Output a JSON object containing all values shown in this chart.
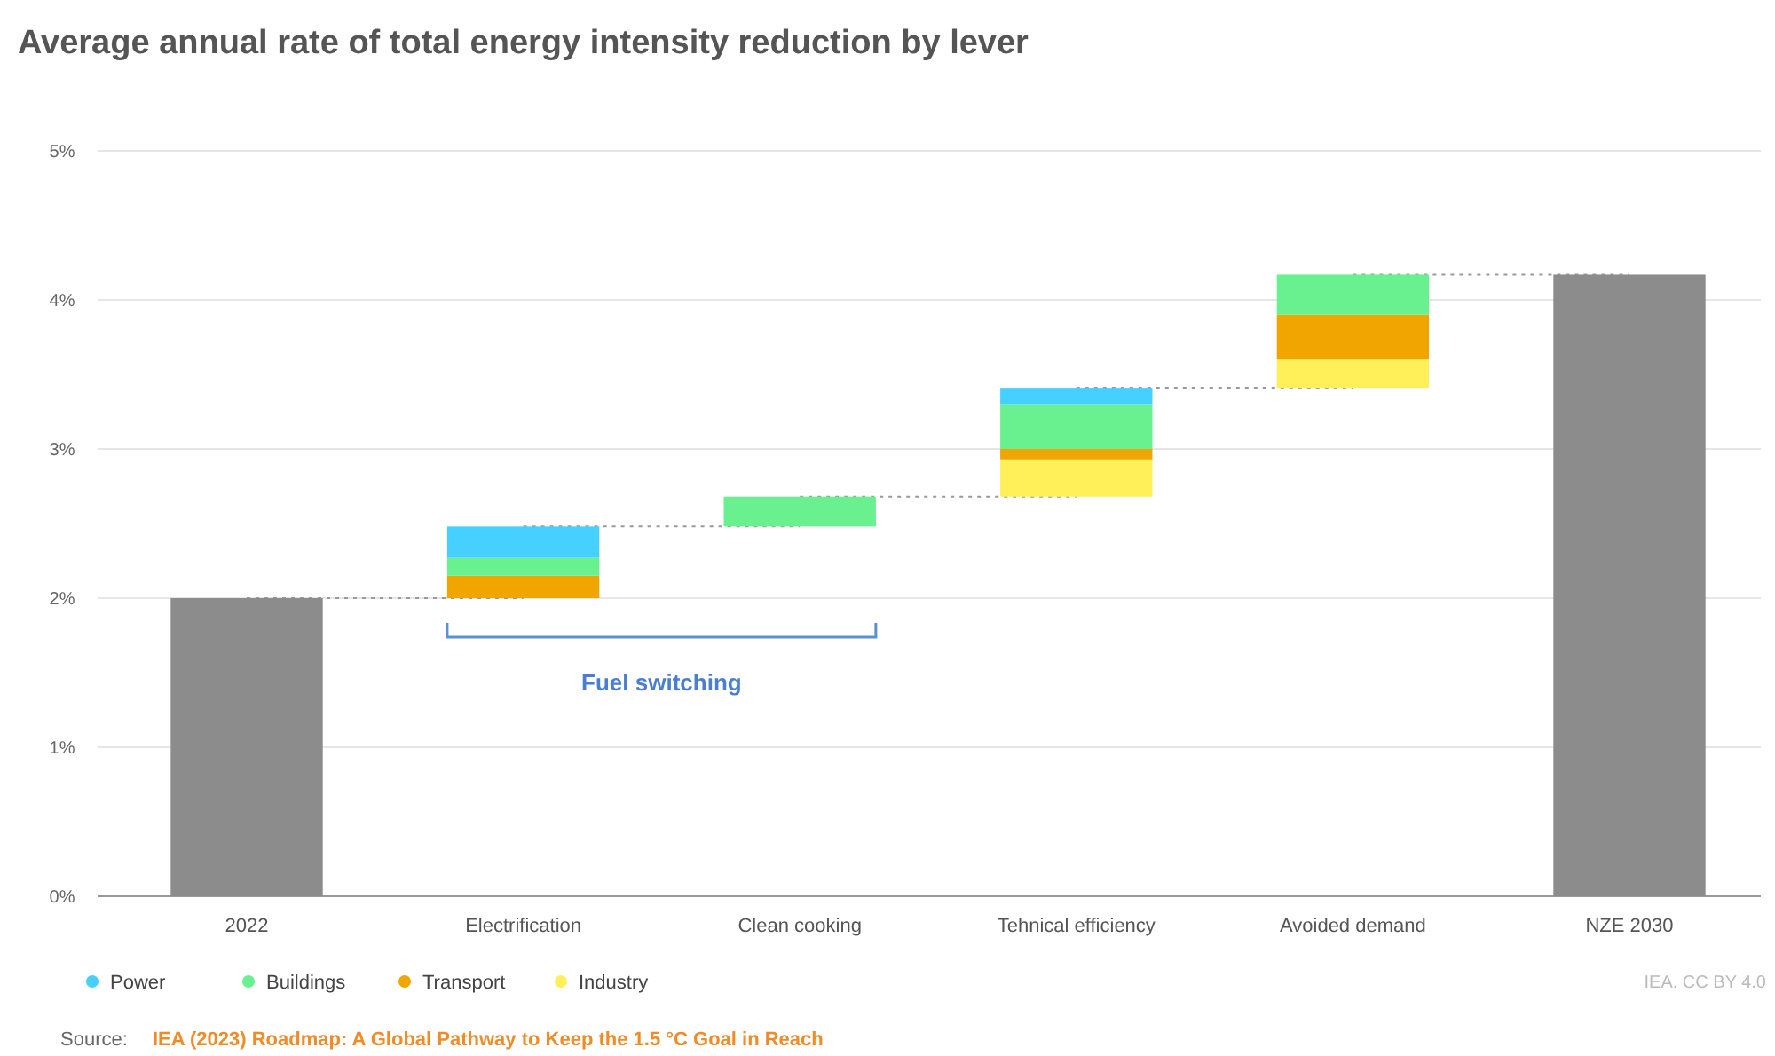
{
  "chart_data": {
    "type": "bar",
    "title": "Average annual rate of total energy intensity reduction by lever",
    "categories": [
      "2022",
      "Electrification",
      "Clean cooking",
      "Tehnical efficiency",
      "Avoided demand",
      "NZE 2030"
    ],
    "series": [
      {
        "color": "#8c8c8c",
        "values": [
          2,
          null,
          null,
          null,
          null,
          4.17
        ],
        "base": [
          0,
          null,
          null,
          null,
          null,
          0
        ]
      },
      {
        "name": "Industry",
        "color": "#fff05a",
        "values": [
          null,
          null,
          null,
          0.25,
          0.19,
          null
        ],
        "base": [
          null,
          null,
          null,
          2.68,
          3.41,
          null
        ]
      },
      {
        "name": "Transport",
        "color": "#f0a500",
        "values": [
          null,
          0.15,
          null,
          0.07,
          0.3,
          null
        ],
        "base": [
          null,
          2,
          null,
          2.93,
          3.6,
          null
        ]
      },
      {
        "name": "Buildings",
        "color": "#69f08f",
        "values": [
          null,
          0.12,
          0.2,
          0.3,
          0.27,
          null
        ],
        "base": [
          null,
          2.15,
          2.48,
          3,
          3.9,
          null
        ]
      },
      {
        "name": "Power",
        "color": "#45d0ff",
        "values": [
          null,
          0.21,
          null,
          0.11,
          null,
          null
        ],
        "base": [
          null,
          2.27,
          null,
          3.3,
          null,
          null
        ]
      }
    ],
    "ylim": [
      0,
      5
    ],
    "yticks": [
      {
        "value": 0,
        "label": "0%"
      },
      {
        "value": 1,
        "label": "1%"
      },
      {
        "value": 2,
        "label": "2%"
      },
      {
        "value": 3,
        "label": "3%"
      },
      {
        "value": 4,
        "label": "4%"
      },
      {
        "value": 5,
        "label": "5%"
      }
    ],
    "grid": "y",
    "legend": "bottom left",
    "annotations": [
      "Fuel switching",
      "IEA. CC BY 4.0",
      "Source:",
      "IEA (2023) Roadmap: A Global Pathway to Keep the 1.5 °C Goal in Reach"
    ]
  }
}
